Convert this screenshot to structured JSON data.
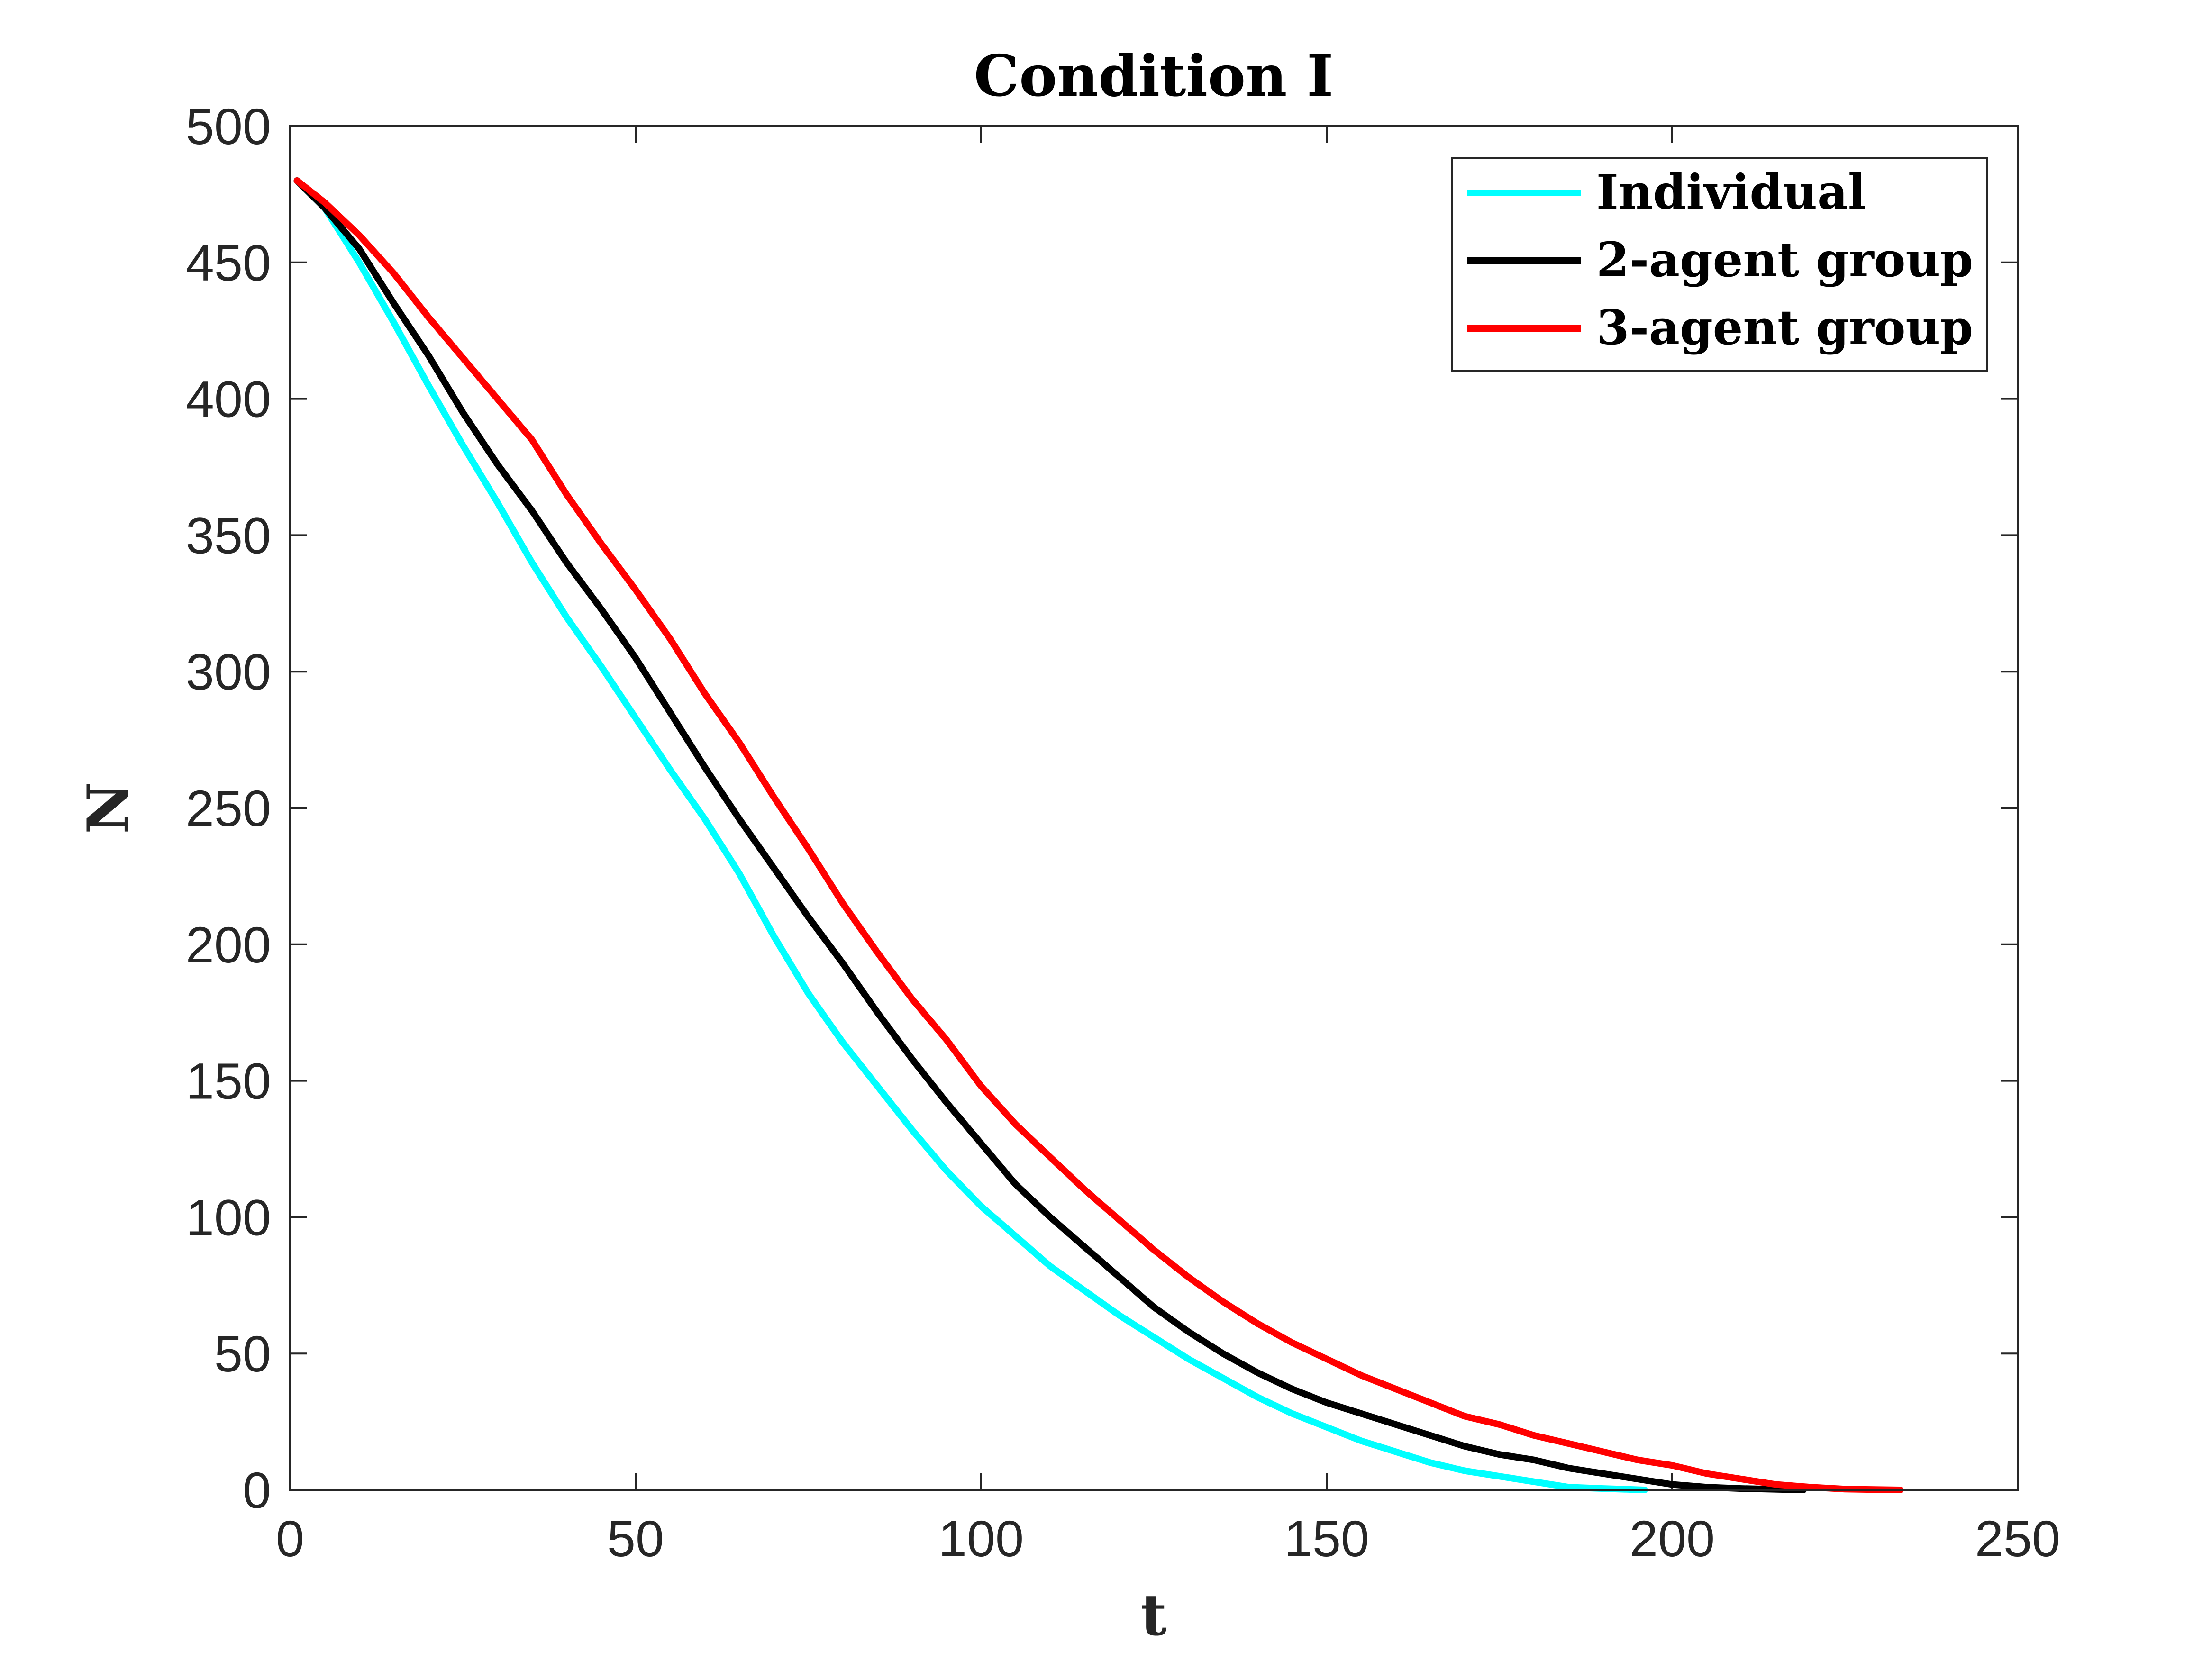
{
  "chart_data": {
    "type": "line",
    "title": "Condition I",
    "xlabel": "t",
    "ylabel": "N",
    "xlim": [
      0,
      250
    ],
    "ylim": [
      0,
      500
    ],
    "xticks": [
      0,
      50,
      100,
      150,
      200,
      250
    ],
    "yticks": [
      0,
      50,
      100,
      150,
      200,
      250,
      300,
      350,
      400,
      450,
      500
    ],
    "legend_position": "top-right",
    "series": [
      {
        "name": "Individual",
        "color": "#00FFFF",
        "points": [
          [
            1,
            480
          ],
          [
            5,
            470
          ],
          [
            10,
            450
          ],
          [
            15,
            428
          ],
          [
            20,
            405
          ],
          [
            25,
            383
          ],
          [
            30,
            362
          ],
          [
            35,
            340
          ],
          [
            40,
            320
          ],
          [
            45,
            302
          ],
          [
            50,
            283
          ],
          [
            55,
            264
          ],
          [
            60,
            246
          ],
          [
            65,
            226
          ],
          [
            70,
            203
          ],
          [
            75,
            182
          ],
          [
            80,
            164
          ],
          [
            85,
            148
          ],
          [
            90,
            132
          ],
          [
            95,
            117
          ],
          [
            100,
            104
          ],
          [
            105,
            93
          ],
          [
            110,
            82
          ],
          [
            115,
            73
          ],
          [
            120,
            64
          ],
          [
            125,
            56
          ],
          [
            130,
            48
          ],
          [
            135,
            41
          ],
          [
            140,
            34
          ],
          [
            145,
            28
          ],
          [
            150,
            23
          ],
          [
            155,
            18
          ],
          [
            160,
            14
          ],
          [
            165,
            10
          ],
          [
            170,
            7
          ],
          [
            175,
            5
          ],
          [
            180,
            3
          ],
          [
            185,
            1
          ],
          [
            190,
            0.5
          ],
          [
            196,
            0
          ]
        ]
      },
      {
        "name": "2-agent group",
        "color": "#000000",
        "points": [
          [
            1,
            480
          ],
          [
            5,
            470
          ],
          [
            10,
            455
          ],
          [
            15,
            435
          ],
          [
            20,
            416
          ],
          [
            25,
            395
          ],
          [
            30,
            376
          ],
          [
            35,
            359
          ],
          [
            40,
            340
          ],
          [
            45,
            323
          ],
          [
            50,
            305
          ],
          [
            55,
            285
          ],
          [
            60,
            265
          ],
          [
            65,
            246
          ],
          [
            70,
            228
          ],
          [
            75,
            210
          ],
          [
            80,
            193
          ],
          [
            85,
            175
          ],
          [
            90,
            158
          ],
          [
            95,
            142
          ],
          [
            100,
            127
          ],
          [
            105,
            112
          ],
          [
            110,
            100
          ],
          [
            115,
            89
          ],
          [
            120,
            78
          ],
          [
            125,
            67
          ],
          [
            130,
            58
          ],
          [
            135,
            50
          ],
          [
            140,
            43
          ],
          [
            145,
            37
          ],
          [
            150,
            32
          ],
          [
            155,
            28
          ],
          [
            160,
            24
          ],
          [
            165,
            20
          ],
          [
            170,
            16
          ],
          [
            175,
            13
          ],
          [
            180,
            11
          ],
          [
            185,
            8
          ],
          [
            190,
            6
          ],
          [
            195,
            4
          ],
          [
            200,
            2
          ],
          [
            205,
            1
          ],
          [
            210,
            0.5
          ],
          [
            219,
            0
          ]
        ]
      },
      {
        "name": "3-agent group",
        "color": "#FF0000",
        "points": [
          [
            1,
            480
          ],
          [
            5,
            472
          ],
          [
            10,
            460
          ],
          [
            15,
            446
          ],
          [
            20,
            430
          ],
          [
            25,
            415
          ],
          [
            30,
            400
          ],
          [
            35,
            385
          ],
          [
            40,
            365
          ],
          [
            45,
            347
          ],
          [
            50,
            330
          ],
          [
            55,
            312
          ],
          [
            60,
            292
          ],
          [
            65,
            274
          ],
          [
            70,
            254
          ],
          [
            75,
            235
          ],
          [
            80,
            215
          ],
          [
            85,
            197
          ],
          [
            90,
            180
          ],
          [
            95,
            165
          ],
          [
            100,
            148
          ],
          [
            105,
            134
          ],
          [
            110,
            122
          ],
          [
            115,
            110
          ],
          [
            120,
            99
          ],
          [
            125,
            88
          ],
          [
            130,
            78
          ],
          [
            135,
            69
          ],
          [
            140,
            61
          ],
          [
            145,
            54
          ],
          [
            150,
            48
          ],
          [
            155,
            42
          ],
          [
            160,
            37
          ],
          [
            165,
            32
          ],
          [
            170,
            27
          ],
          [
            175,
            24
          ],
          [
            180,
            20
          ],
          [
            185,
            17
          ],
          [
            190,
            14
          ],
          [
            195,
            11
          ],
          [
            200,
            9
          ],
          [
            205,
            6
          ],
          [
            210,
            4
          ],
          [
            215,
            2
          ],
          [
            220,
            1
          ],
          [
            225,
            0.3
          ],
          [
            233,
            0
          ]
        ]
      }
    ]
  }
}
